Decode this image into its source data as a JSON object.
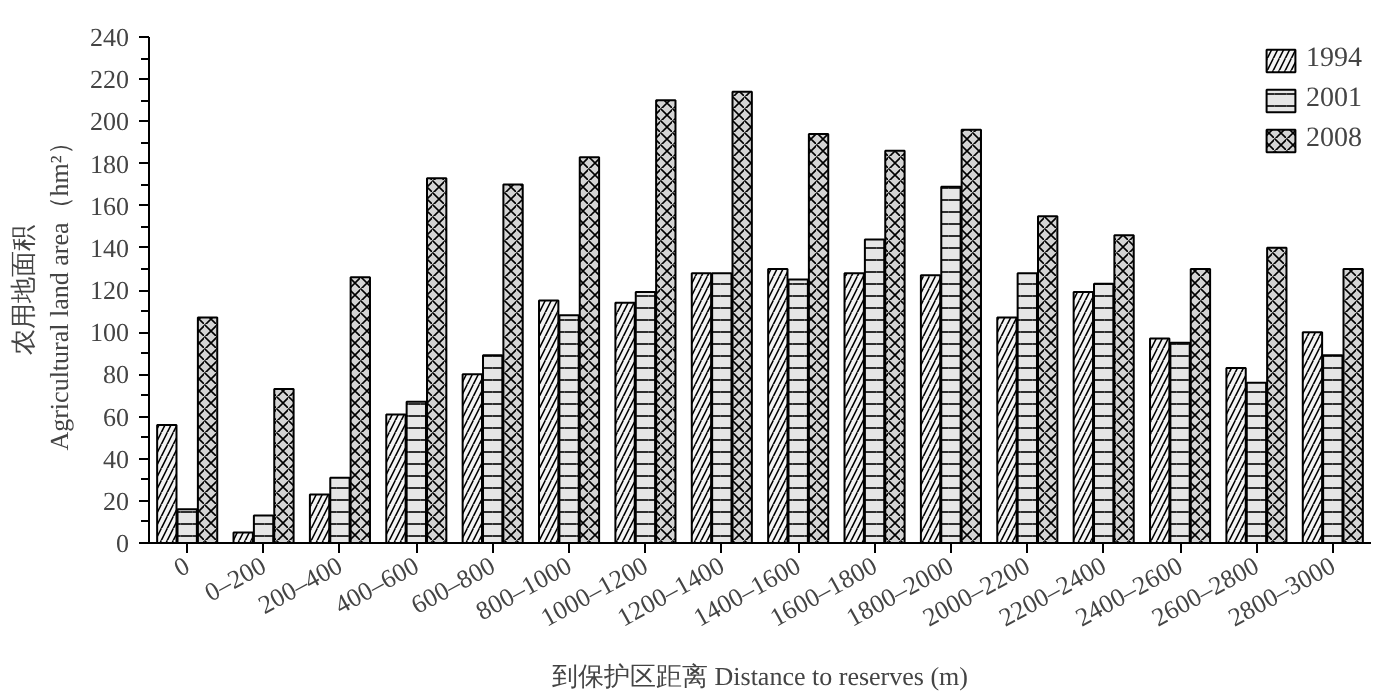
{
  "chart_data": {
    "type": "bar",
    "xlabel": "到保护区距离 Distance to reserves (m)",
    "ylabel": "农用地面积\nAgricultural land area（hm²）",
    "categories": [
      "0",
      "0–200",
      "200–400",
      "400–600",
      "600–800",
      "800–1000",
      "1000–1200",
      "1200–1400",
      "1400–1600",
      "1600–1800",
      "1800–2000",
      "2000–2200",
      "2200–2400",
      "2400–2600",
      "2600–2800",
      "2800–3000"
    ],
    "series": [
      {
        "name": "1994",
        "color": "#f4f4f4",
        "values": [
          56,
          5,
          23,
          61,
          80,
          115,
          114,
          128,
          130,
          128,
          127,
          107,
          119,
          97,
          83,
          100
        ]
      },
      {
        "name": "2001",
        "color": "#e6e6e6",
        "values": [
          16,
          13,
          31,
          67,
          89,
          108,
          119,
          128,
          125,
          144,
          169,
          128,
          123,
          95,
          76,
          89
        ]
      },
      {
        "name": "2008",
        "color": "#d4d4d4",
        "values": [
          107,
          73,
          126,
          173,
          170,
          183,
          210,
          214,
          194,
          186,
          196,
          155,
          146,
          130,
          140,
          130
        ]
      }
    ],
    "ylim": [
      0,
      240
    ],
    "yticks": [
      0,
      20,
      40,
      60,
      80,
      100,
      120,
      140,
      160,
      180,
      200,
      220,
      240
    ],
    "grid": false,
    "legend": "top right"
  }
}
